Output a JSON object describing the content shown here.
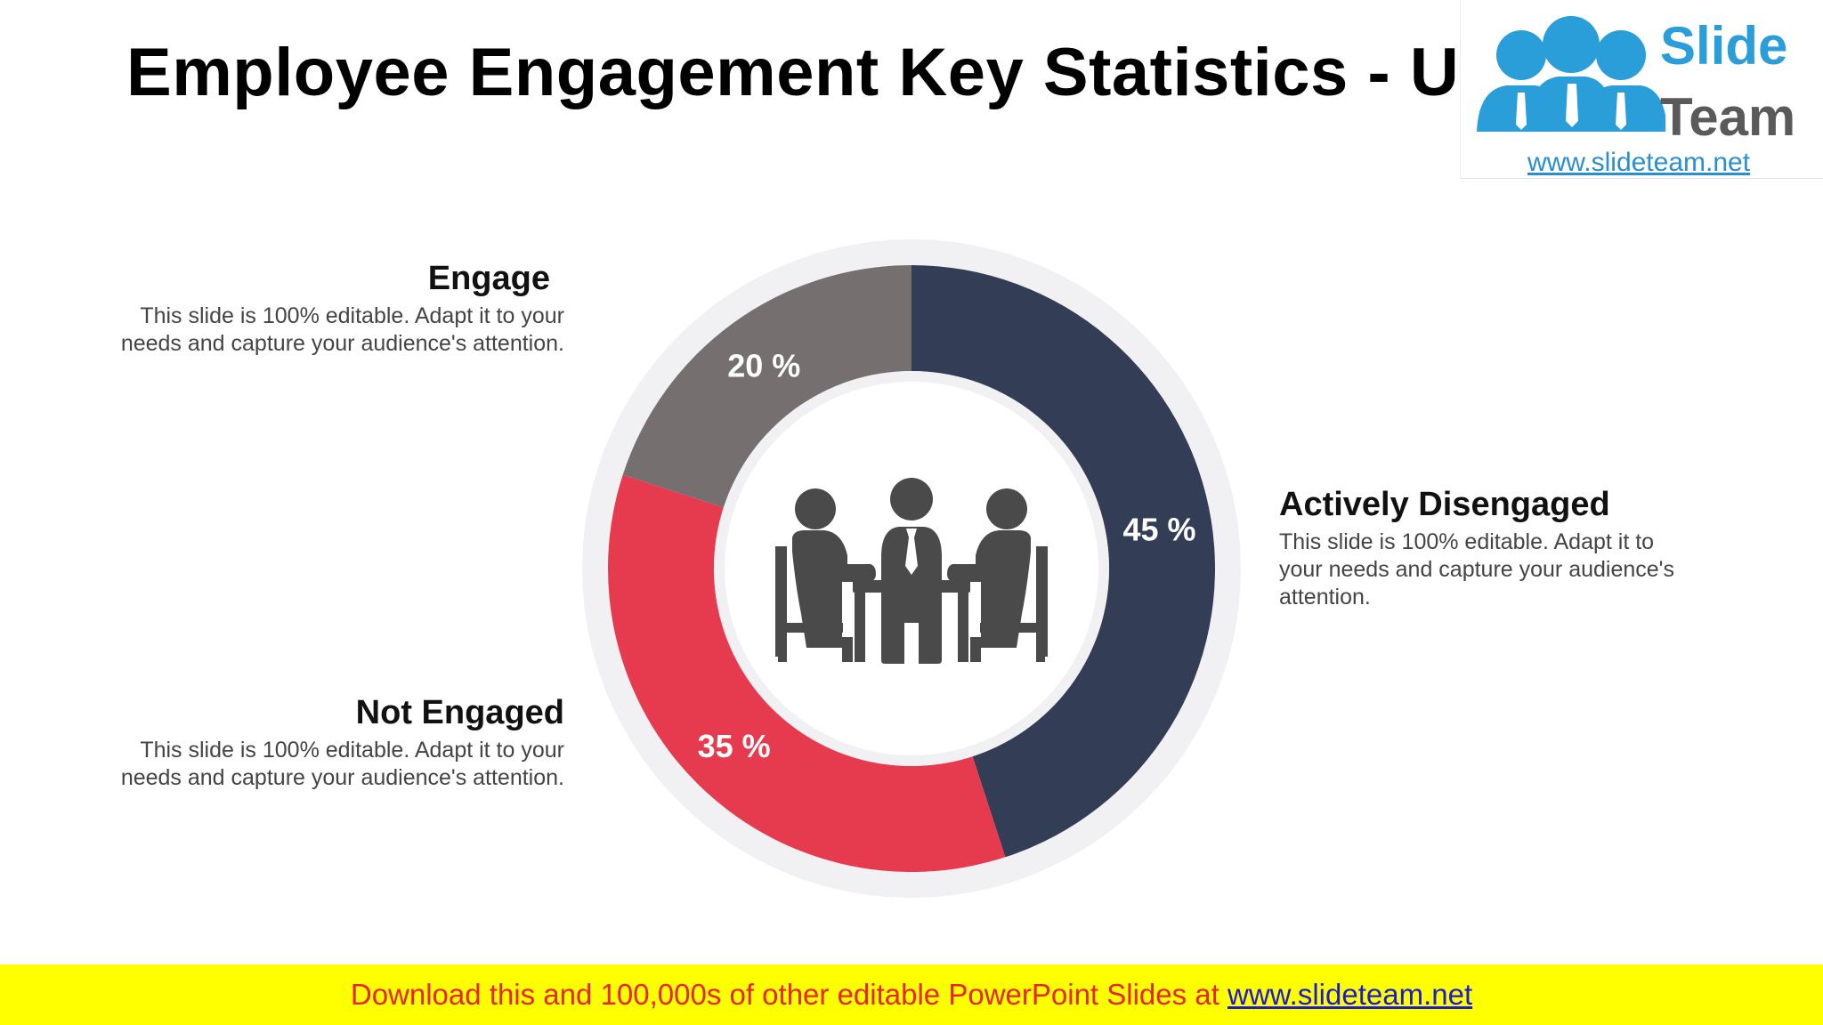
{
  "title": "Employee Engagement Key Statistics - US",
  "logo": {
    "line1": "Slide",
    "line2": "Team",
    "url": "www.slideteam.net"
  },
  "chart_data": {
    "type": "pie",
    "variant": "donut",
    "title": "",
    "segments": [
      {
        "label": "Actively Disengaged",
        "value": 45,
        "value_label": "45 %",
        "color": "#333d55"
      },
      {
        "label": "Not Engaged",
        "value": 35,
        "value_label": "35 %",
        "color": "#e63b4f"
      },
      {
        "label": "Engage",
        "value": 20,
        "value_label": "20 %",
        "color": "#756f70"
      }
    ],
    "center_icon": "business-meeting-icon"
  },
  "labels": {
    "engage": {
      "title": "Engage",
      "description": "This slide is 100% editable. Adapt it to your needs and capture your audience's attention."
    },
    "not_engaged": {
      "title": "Not Engaged",
      "description": "This slide is 100% editable. Adapt it to your needs and capture your audience's attention."
    },
    "actively_disengaged": {
      "title": "Actively Disengaged",
      "description": "This slide is 100% editable. Adapt it to your needs and capture your audience's attention."
    }
  },
  "footer": {
    "text": "Download this and 100,000s of other editable PowerPoint Slides at ",
    "link": "www.slideteam.net"
  },
  "colors": {
    "ring_background": "#f1f1f3",
    "icon": "#4a4a4a",
    "banner_bg": "#ffff00",
    "banner_text": "#e8262a",
    "banner_link": "#1b1bd6"
  }
}
